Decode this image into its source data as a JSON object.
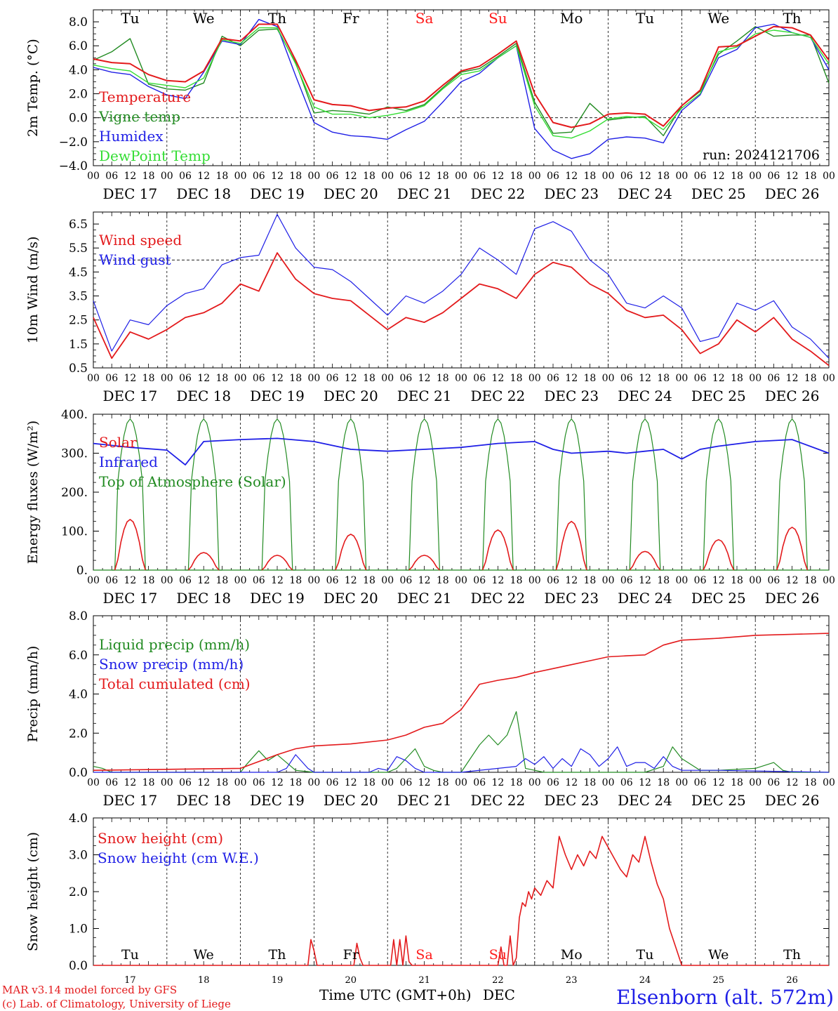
{
  "run_label": "run: 2024121706",
  "x_axis": {
    "hour_ticks": [
      "00",
      "06",
      "12",
      "18"
    ],
    "final_tick": "00",
    "dates": [
      "DEC 17",
      "DEC 18",
      "DEC 19",
      "DEC 20",
      "DEC 21",
      "DEC 22",
      "DEC 23",
      "DEC 24",
      "DEC 25",
      "DEC 26"
    ],
    "weekdays": [
      {
        "label": "Tu",
        "color": "#000000"
      },
      {
        "label": "We",
        "color": "#000000"
      },
      {
        "label": "Th",
        "color": "#000000"
      },
      {
        "label": "Fr",
        "color": "#000000"
      },
      {
        "label": "Sa",
        "color": "#ff1a1a"
      },
      {
        "label": "Su",
        "color": "#ff1a1a"
      },
      {
        "label": "Mo",
        "color": "#000000"
      },
      {
        "label": "Tu",
        "color": "#000000"
      },
      {
        "label": "We",
        "color": "#000000"
      },
      {
        "label": "Th",
        "color": "#000000"
      }
    ],
    "day_numbers": [
      "17",
      "18",
      "19",
      "20",
      "21",
      "22",
      "23",
      "24",
      "25",
      "26"
    ],
    "bottom_label": "Time UTC (GMT+0h)",
    "bottom_month": "DEC"
  },
  "footer": {
    "model_line": "MAR v3.14 model forced by GFS",
    "copyright_line": "(c) Lab. of Climatology, University of Liege",
    "station": "Elsenborn (alt. 572m)"
  },
  "chart_data": [
    {
      "type": "line",
      "id": "temp",
      "ylabel": "2m Temp. (°C)",
      "ylim": [
        -4,
        9
      ],
      "yticks": [
        -4,
        -2,
        0,
        2,
        4,
        6,
        8
      ],
      "ytick_labels": [
        "−4.0",
        "−2.0",
        "0.0",
        "2.0",
        "4.0",
        "6.0",
        "8.0"
      ],
      "reference_line": 0,
      "x_hours": [
        0,
        6,
        12,
        18,
        24,
        30,
        36,
        42,
        48,
        54,
        60,
        66,
        72,
        78,
        84,
        90,
        96,
        102,
        108,
        114,
        120,
        126,
        132,
        138,
        144,
        150,
        156,
        162,
        168,
        174,
        180,
        186,
        192,
        198,
        204,
        210,
        216,
        222,
        228,
        234,
        240
      ],
      "series": [
        {
          "name": "Temperature",
          "color": "#e31a1c",
          "values": [
            4.9,
            4.6,
            4.5,
            3.6,
            3.1,
            3.0,
            3.9,
            6.6,
            6.4,
            7.8,
            7.8,
            4.8,
            1.5,
            1.1,
            1.0,
            0.6,
            0.8,
            0.9,
            1.4,
            2.7,
            3.9,
            4.3,
            5.3,
            6.4,
            2.0,
            -0.4,
            -0.8,
            -0.5,
            0.3,
            0.4,
            0.3,
            -0.7,
            1.0,
            2.3,
            5.9,
            6.0,
            6.8,
            7.6,
            7.5,
            6.9,
            4.8
          ]
        },
        {
          "name": "Vigne temp",
          "color": "#228b22",
          "values": [
            4.8,
            5.5,
            6.6,
            2.8,
            2.4,
            2.3,
            2.9,
            6.8,
            6.0,
            7.3,
            7.4,
            4.6,
            0.4,
            0.6,
            0.5,
            0.3,
            0.9,
            0.6,
            1.1,
            2.5,
            3.8,
            4.1,
            5.1,
            6.2,
            1.3,
            -1.3,
            -1.2,
            1.2,
            -0.2,
            0.0,
            0.1,
            -1.5,
            1.0,
            2.2,
            5.3,
            6.4,
            7.6,
            6.8,
            6.9,
            6.9,
            2.9
          ]
        },
        {
          "name": "Humidex",
          "color": "#1f1fe6",
          "values": [
            4.2,
            3.8,
            3.6,
            2.6,
            1.9,
            1.6,
            3.8,
            6.4,
            6.1,
            8.2,
            7.6,
            3.5,
            -0.4,
            -1.2,
            -1.5,
            -1.6,
            -1.8,
            -1.0,
            -0.3,
            1.3,
            3.0,
            3.7,
            5.0,
            6.0,
            -0.9,
            -2.7,
            -3.4,
            -3.0,
            -1.8,
            -1.6,
            -1.7,
            -2.1,
            0.6,
            1.9,
            5.0,
            5.7,
            7.5,
            7.8,
            7.1,
            6.7,
            4.0
          ]
        },
        {
          "name": "DewPoint Temp",
          "color": "#33dd33",
          "values": [
            4.4,
            4.1,
            3.9,
            2.9,
            2.7,
            2.5,
            3.3,
            6.5,
            6.2,
            7.5,
            7.5,
            4.5,
            0.9,
            0.3,
            0.3,
            0.0,
            0.2,
            0.5,
            1.0,
            2.4,
            3.6,
            3.9,
            5.0,
            6.0,
            1.0,
            -1.5,
            -1.7,
            -1.1,
            -0.1,
            0.1,
            0.0,
            -1.0,
            0.8,
            2.0,
            5.5,
            5.9,
            7.0,
            7.3,
            7.1,
            6.7,
            4.5
          ]
        }
      ]
    },
    {
      "type": "line",
      "id": "wind",
      "ylabel": "10m Wind (m/s)",
      "ylim": [
        0.5,
        7.0
      ],
      "yticks": [
        0.5,
        1.5,
        2.5,
        3.5,
        4.5,
        5.5,
        6.5
      ],
      "ytick_labels": [
        "0.5",
        "1.5",
        "2.5",
        "3.5",
        "4.5",
        "5.5",
        "6.5"
      ],
      "reference_line": 5.0,
      "x_hours": [
        0,
        6,
        12,
        18,
        24,
        30,
        36,
        42,
        48,
        54,
        60,
        66,
        72,
        78,
        84,
        90,
        96,
        102,
        108,
        114,
        120,
        126,
        132,
        138,
        144,
        150,
        156,
        162,
        168,
        174,
        180,
        186,
        192,
        198,
        204,
        210,
        216,
        222,
        228,
        234,
        240
      ],
      "series": [
        {
          "name": "Wind speed",
          "color": "#e31a1c",
          "values": [
            2.6,
            0.9,
            2.0,
            1.7,
            2.1,
            2.6,
            2.8,
            3.2,
            4.0,
            3.7,
            5.3,
            4.2,
            3.6,
            3.4,
            3.3,
            2.7,
            2.1,
            2.6,
            2.4,
            2.8,
            3.4,
            4.0,
            3.8,
            3.4,
            4.4,
            4.9,
            4.7,
            4.0,
            3.6,
            2.9,
            2.6,
            2.7,
            2.1,
            1.1,
            1.5,
            2.5,
            2.0,
            2.6,
            1.7,
            1.2,
            0.6
          ]
        },
        {
          "name": "Wind gust",
          "color": "#1f1fe6",
          "values": [
            3.3,
            1.2,
            2.5,
            2.3,
            3.1,
            3.6,
            3.8,
            4.8,
            5.1,
            5.2,
            6.9,
            5.5,
            4.7,
            4.6,
            4.1,
            3.4,
            2.7,
            3.5,
            3.2,
            3.7,
            4.4,
            5.5,
            5.0,
            4.4,
            6.3,
            6.6,
            6.2,
            5.0,
            4.4,
            3.2,
            3.0,
            3.5,
            3.0,
            1.6,
            1.8,
            3.2,
            2.9,
            3.3,
            2.2,
            1.7,
            0.9
          ]
        }
      ]
    },
    {
      "type": "line",
      "id": "energy",
      "ylabel": "Energy fluxes (W/m²)",
      "ylim": [
        0,
        400
      ],
      "yticks": [
        0,
        100,
        200,
        300,
        400
      ],
      "ytick_labels": [
        "0.",
        "100.",
        "200.",
        "300.",
        "400."
      ],
      "series": [
        {
          "name": "Solar",
          "color": "#e31a1c",
          "daily_peaks": [
            130,
            45,
            38,
            92,
            38,
            103,
            125,
            48,
            78,
            110
          ]
        },
        {
          "name": "Infrared",
          "color": "#1f1fe6",
          "x_hours": [
            0,
            12,
            24,
            30,
            36,
            48,
            60,
            72,
            84,
            96,
            108,
            120,
            132,
            144,
            150,
            156,
            168,
            174,
            180,
            186,
            192,
            198,
            204,
            216,
            228,
            240
          ],
          "values": [
            325,
            315,
            308,
            270,
            330,
            335,
            338,
            330,
            310,
            305,
            310,
            315,
            325,
            330,
            310,
            300,
            305,
            300,
            305,
            310,
            285,
            310,
            318,
            330,
            335,
            300
          ]
        },
        {
          "name": "Top of Atmosphere (Solar)",
          "color": "#228b22",
          "daily_peak": 388
        }
      ]
    },
    {
      "type": "line",
      "id": "precip",
      "ylabel": "Precip (mm/h)",
      "ylim": [
        0,
        8
      ],
      "yticks": [
        0,
        2,
        4,
        6,
        8
      ],
      "ytick_labels": [
        "0.0",
        "2.0",
        "4.0",
        "6.0",
        "8.0"
      ],
      "series": [
        {
          "name": "Liquid precip (mm/h)",
          "color": "#228b22",
          "x_hours": [
            0,
            3,
            6,
            12,
            24,
            48,
            50,
            54,
            57,
            60,
            66,
            72,
            96,
            99,
            102,
            105,
            108,
            111,
            114,
            120,
            126,
            129,
            132,
            135,
            138,
            141,
            144,
            147,
            150,
            156,
            162,
            168,
            180,
            186,
            189,
            192,
            198,
            204,
            216,
            222,
            225,
            228,
            240
          ],
          "values": [
            0.3,
            0.2,
            0.0,
            0.0,
            0.0,
            0.0,
            0.4,
            1.1,
            0.6,
            0.9,
            0.1,
            0.0,
            0.0,
            0.2,
            0.7,
            1.2,
            0.3,
            0.1,
            0.0,
            0.0,
            1.4,
            1.9,
            1.4,
            1.9,
            3.1,
            0.2,
            0.1,
            0.0,
            0.0,
            0.0,
            0.0,
            0.0,
            0.0,
            0.3,
            1.3,
            0.7,
            0.1,
            0.1,
            0.2,
            0.5,
            0.1,
            0.0,
            0.0
          ]
        },
        {
          "name": "Snow precip (mm/h)",
          "color": "#1f1fe6",
          "x_hours": [
            0,
            48,
            60,
            63,
            66,
            70,
            72,
            90,
            93,
            96,
            99,
            102,
            105,
            108,
            120,
            138,
            141,
            144,
            147,
            150,
            153,
            156,
            159,
            162,
            165,
            168,
            171,
            174,
            177,
            180,
            183,
            186,
            189,
            192,
            204,
            240
          ],
          "values": [
            0.0,
            0.0,
            0.0,
            0.2,
            0.9,
            0.2,
            0.0,
            0.0,
            0.2,
            0.1,
            0.8,
            0.6,
            0.2,
            0.0,
            0.0,
            0.3,
            0.7,
            0.4,
            0.8,
            0.2,
            0.7,
            0.3,
            1.2,
            0.9,
            0.3,
            0.7,
            1.3,
            0.3,
            0.5,
            0.5,
            0.2,
            0.8,
            0.3,
            0.1,
            0.1,
            0.0
          ]
        },
        {
          "name": "Total cumulated (cm)",
          "color": "#e31a1c",
          "x_hours": [
            0,
            24,
            48,
            60,
            66,
            72,
            84,
            96,
            102,
            108,
            114,
            120,
            126,
            132,
            138,
            144,
            150,
            156,
            162,
            168,
            174,
            180,
            186,
            192,
            204,
            216,
            240
          ],
          "values": [
            0.1,
            0.15,
            0.2,
            0.9,
            1.2,
            1.35,
            1.45,
            1.65,
            1.9,
            2.3,
            2.5,
            3.2,
            4.5,
            4.7,
            4.85,
            5.1,
            5.3,
            5.5,
            5.7,
            5.9,
            5.95,
            6.0,
            6.5,
            6.75,
            6.85,
            7.0,
            7.1
          ]
        }
      ]
    },
    {
      "type": "line",
      "id": "snow",
      "ylabel": "Snow height (cm)",
      "ylim": [
        0,
        4
      ],
      "yticks": [
        0,
        1,
        2,
        3,
        4
      ],
      "ytick_labels": [
        "0.0",
        "1.0",
        "2.0",
        "3.0",
        "4.0"
      ],
      "series": [
        {
          "name": "Snow height (cm)",
          "color": "#e31a1c",
          "x_hours": [
            0,
            70,
            71,
            72,
            73,
            74,
            85,
            86,
            87,
            88,
            97,
            98,
            99,
            100,
            101,
            102,
            103,
            104,
            132,
            133,
            134,
            135,
            136,
            137,
            138,
            139,
            140,
            141,
            142,
            143,
            144,
            146,
            148,
            150,
            152,
            154,
            156,
            158,
            160,
            162,
            164,
            166,
            168,
            170,
            172,
            174,
            176,
            178,
            180,
            182,
            184,
            186,
            188,
            190,
            192,
            193,
            240
          ],
          "values": [
            0,
            0,
            0.7,
            0.4,
            0,
            0,
            0,
            0.6,
            0.2,
            0,
            0,
            0.7,
            0,
            0.7,
            0,
            0.8,
            0.1,
            0,
            0,
            0.5,
            0,
            0,
            0.8,
            0,
            0.2,
            1.3,
            1.7,
            1.6,
            2.0,
            1.8,
            2.1,
            1.9,
            2.3,
            2.1,
            3.5,
            3.0,
            2.6,
            3.0,
            2.7,
            3.1,
            2.9,
            3.5,
            3.2,
            2.9,
            2.6,
            2.4,
            3.0,
            2.8,
            3.5,
            2.8,
            2.2,
            1.8,
            1.0,
            0.5,
            0,
            0,
            0
          ]
        },
        {
          "name": "Snow height (cm W.E.)",
          "color": "#1f1fe6",
          "values": []
        }
      ]
    }
  ]
}
